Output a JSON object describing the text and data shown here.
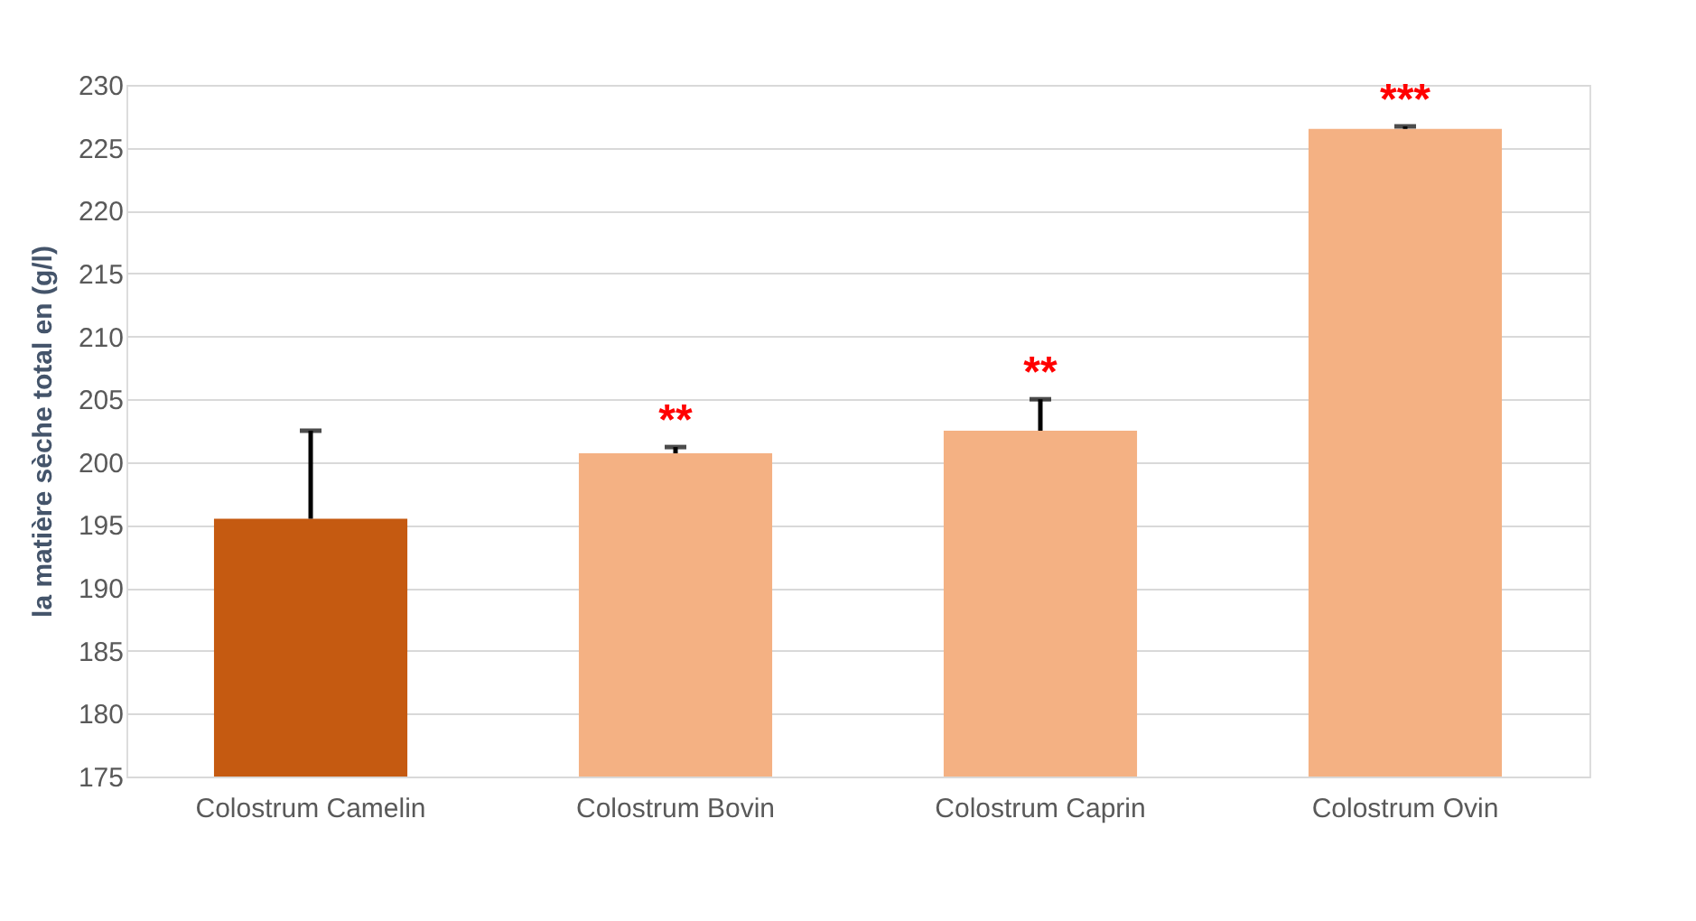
{
  "chart_data": {
    "type": "bar",
    "ylabel": "la  matière sèche total en (g/l)",
    "categories": [
      "Colostrum Camelin",
      "Colostrum Bovin",
      "Colostrum Caprin",
      "Colostrum Ovin"
    ],
    "values": [
      195.5,
      200.7,
      202.5,
      226.5
    ],
    "colors": [
      "#c55a11",
      "#f4b183",
      "#f4b183",
      "#f4b183"
    ],
    "errors": [
      [
        195.5,
        202.5
      ],
      [
        200.7,
        201.2
      ],
      [
        202.5,
        205.0
      ],
      [
        226.5,
        226.7
      ]
    ],
    "ylim": [
      175,
      230
    ],
    "yticks": [
      175,
      180,
      185,
      190,
      195,
      200,
      205,
      210,
      215,
      220,
      225,
      230
    ],
    "grid": "y",
    "annotations": [
      "**",
      "**",
      "***"
    ]
  }
}
